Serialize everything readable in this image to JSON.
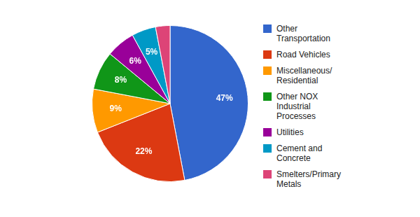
{
  "chart_data": {
    "type": "pie",
    "categories": [
      "Other Transportation",
      "Road Vehicles",
      "Miscellaneous/ Residential",
      "Other NOX Industrial Processes",
      "Utilities",
      "Cement and Concrete",
      "Smelters/Primary Metals"
    ],
    "values": [
      47,
      22,
      9,
      8,
      6,
      5,
      3
    ],
    "value_labels": [
      "47%",
      "22%",
      "9%",
      "8%",
      "6%",
      "5%",
      null
    ],
    "colors": [
      "#3366cc",
      "#dc3912",
      "#ff9900",
      "#109618",
      "#990099",
      "#0099c6",
      "#dd4477"
    ],
    "data_labels": true,
    "legend": "right"
  }
}
